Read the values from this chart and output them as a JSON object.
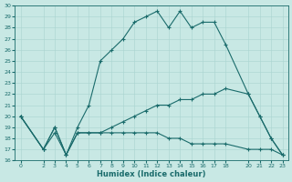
{
  "xlabel": "Humidex (Indice chaleur)",
  "xlim": [
    -0.5,
    23.5
  ],
  "ylim": [
    16,
    30
  ],
  "xticks": [
    0,
    2,
    3,
    4,
    5,
    6,
    7,
    8,
    9,
    10,
    11,
    12,
    13,
    14,
    15,
    16,
    17,
    18,
    20,
    21,
    22,
    23
  ],
  "yticks": [
    16,
    17,
    18,
    19,
    20,
    21,
    22,
    23,
    24,
    25,
    26,
    27,
    28,
    29,
    30
  ],
  "bg_color": "#c8e8e4",
  "line_color": "#1a6b6b",
  "grid_color": "#a8d4d0",
  "line1_x": [
    0,
    2,
    3,
    4,
    5,
    6,
    7,
    8,
    9,
    10,
    11,
    12,
    13,
    14,
    15,
    16,
    17,
    18,
    20,
    21,
    22,
    23
  ],
  "line1_y": [
    20,
    17,
    19,
    16.5,
    19,
    21,
    25,
    26,
    27,
    28.5,
    29,
    29.5,
    28,
    29.5,
    28,
    28.5,
    28.5,
    26.5,
    22,
    20,
    18,
    16.5
  ],
  "line2_x": [
    0,
    2,
    3,
    4,
    5,
    6,
    7,
    8,
    9,
    10,
    11,
    12,
    13,
    14,
    15,
    16,
    17,
    18,
    20,
    21,
    22,
    23
  ],
  "line2_y": [
    20,
    17,
    18.5,
    16.5,
    18.5,
    18.5,
    18.5,
    19,
    19.5,
    20,
    20.5,
    21,
    21,
    21.5,
    21.5,
    22,
    22,
    22.5,
    22,
    20,
    18,
    16.5
  ],
  "line3_x": [
    0,
    2,
    3,
    4,
    5,
    6,
    7,
    8,
    9,
    10,
    11,
    12,
    13,
    14,
    15,
    16,
    17,
    18,
    20,
    21,
    22,
    23
  ],
  "line3_y": [
    20,
    17,
    19,
    16.5,
    18.5,
    18.5,
    18.5,
    18.5,
    18.5,
    18.5,
    18.5,
    18.5,
    18,
    18,
    17.5,
    17.5,
    17.5,
    17.5,
    17,
    17,
    17,
    16.5
  ],
  "marker": "+",
  "markersize": 3,
  "linewidth": 0.8,
  "tick_fontsize": 4.5,
  "xlabel_fontsize": 6
}
